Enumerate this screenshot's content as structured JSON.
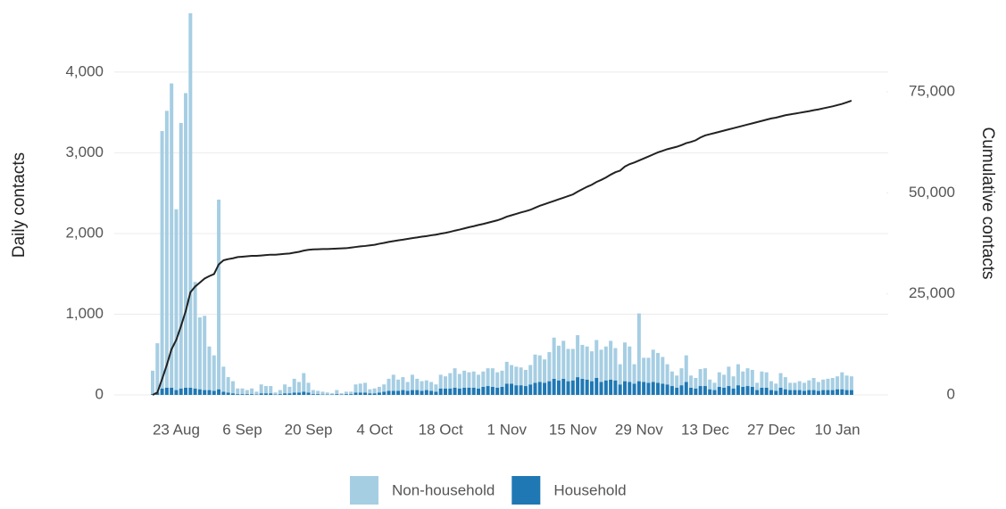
{
  "chart_data": {
    "type": "bar",
    "stacked": true,
    "y_label": "Daily contacts",
    "y2_label": "Cumulative contacts",
    "categories": [
      null,
      null,
      null,
      null,
      null,
      "23 Aug",
      null,
      null,
      null,
      null,
      null,
      null,
      null,
      null,
      null,
      null,
      null,
      null,
      null,
      "6 Sep",
      null,
      null,
      null,
      null,
      null,
      null,
      null,
      null,
      null,
      null,
      null,
      null,
      null,
      "20 Sep",
      null,
      null,
      null,
      null,
      null,
      null,
      null,
      null,
      null,
      null,
      null,
      null,
      null,
      "4 Oct",
      null,
      null,
      null,
      null,
      null,
      null,
      null,
      null,
      null,
      null,
      null,
      null,
      null,
      "18 Oct",
      null,
      null,
      null,
      null,
      null,
      null,
      null,
      null,
      null,
      null,
      null,
      null,
      null,
      "1 Nov",
      null,
      null,
      null,
      null,
      null,
      null,
      null,
      null,
      null,
      null,
      null,
      null,
      null,
      "15 Nov",
      null,
      null,
      null,
      null,
      null,
      null,
      null,
      null,
      null,
      null,
      null,
      null,
      null,
      "29 Nov",
      null,
      null,
      null,
      null,
      null,
      null,
      null,
      null,
      null,
      null,
      null,
      null,
      null,
      "13 Dec",
      null,
      null,
      null,
      null,
      null,
      null,
      null,
      null,
      null,
      null,
      null,
      null,
      null,
      "27 Dec",
      null,
      null,
      null,
      null,
      null,
      null,
      null,
      null,
      null,
      null,
      null,
      null,
      null,
      "10 Jan",
      null,
      null,
      null
    ],
    "series": [
      {
        "name": "Household",
        "color": "#1f78b4",
        "values": [
          10,
          30,
          80,
          90,
          90,
          60,
          80,
          90,
          90,
          80,
          70,
          60,
          60,
          50,
          70,
          40,
          30,
          20,
          10,
          10,
          10,
          10,
          5,
          20,
          20,
          20,
          5,
          10,
          20,
          20,
          30,
          30,
          40,
          30,
          10,
          10,
          5,
          5,
          5,
          10,
          5,
          10,
          10,
          30,
          30,
          30,
          20,
          20,
          30,
          40,
          50,
          50,
          50,
          60,
          50,
          60,
          60,
          50,
          60,
          50,
          40,
          80,
          80,
          80,
          90,
          80,
          90,
          90,
          90,
          80,
          100,
          110,
          100,
          90,
          100,
          140,
          140,
          120,
          120,
          110,
          130,
          150,
          160,
          150,
          170,
          200,
          180,
          200,
          170,
          180,
          220,
          200,
          190,
          170,
          210,
          160,
          180,
          190,
          180,
          130,
          170,
          160,
          140,
          170,
          160,
          150,
          160,
          150,
          140,
          130,
          110,
          90,
          120,
          160,
          90,
          80,
          110,
          110,
          70,
          60,
          100,
          90,
          110,
          80,
          120,
          100,
          110,
          100,
          60,
          90,
          90,
          60,
          50,
          90,
          70,
          60,
          60,
          60,
          50,
          60,
          60,
          50,
          60,
          60,
          60,
          70,
          70,
          60,
          60
        ]
      },
      {
        "name": "Non-household",
        "color": "#a6cee3",
        "values": [
          290,
          610,
          3190,
          3430,
          3770,
          2240,
          3290,
          3650,
          4640,
          1320,
          890,
          920,
          540,
          440,
          2350,
          310,
          190,
          150,
          70,
          70,
          50,
          70,
          35,
          110,
          90,
          90,
          25,
          50,
          110,
          80,
          170,
          130,
          230,
          120,
          50,
          40,
          35,
          25,
          15,
          50,
          15,
          30,
          30,
          100,
          110,
          120,
          50,
          60,
          70,
          90,
          150,
          200,
          140,
          160,
          110,
          190,
          140,
          120,
          120,
          110,
          90,
          170,
          150,
          190,
          240,
          180,
          210,
          190,
          200,
          170,
          190,
          220,
          230,
          190,
          200,
          270,
          230,
          230,
          220,
          200,
          240,
          350,
          330,
          290,
          360,
          510,
          430,
          470,
          400,
          390,
          520,
          420,
          410,
          370,
          470,
          400,
          420,
          480,
          400,
          250,
          480,
          440,
          240,
          840,
          300,
          310,
          400,
          370,
          330,
          250,
          180,
          150,
          210,
          330,
          150,
          130,
          210,
          220,
          120,
          90,
          180,
          160,
          240,
          150,
          260,
          190,
          220,
          210,
          90,
          200,
          190,
          110,
          90,
          180,
          150,
          90,
          90,
          110,
          100,
          120,
          150,
          110,
          130,
          140,
          150,
          160,
          210,
          180,
          170
        ]
      },
      {
        "name": "Cumulative",
        "type": "line",
        "axis": "y2",
        "color": "#222222",
        "values": [
          0,
          600,
          3900,
          7400,
          11300,
          13600,
          17000,
          20700,
          25400,
          26800,
          27800,
          28800,
          29400,
          29900,
          32300,
          33300,
          33600,
          33800,
          34100,
          34200,
          34300,
          34400,
          34400,
          34500,
          34600,
          34700,
          34700,
          34800,
          34900,
          35000,
          35200,
          35400,
          35700,
          35900,
          36000,
          36050,
          36100,
          36100,
          36150,
          36200,
          36250,
          36300,
          36450,
          36600,
          36750,
          36850,
          37000,
          37150,
          37400,
          37600,
          37850,
          38050,
          38250,
          38400,
          38600,
          38800,
          38950,
          39150,
          39300,
          39500,
          39650,
          39900,
          40100,
          40350,
          40650,
          40900,
          41200,
          41500,
          41750,
          42050,
          42300,
          42600,
          42900,
          43200,
          43600,
          44100,
          44450,
          44800,
          45150,
          45450,
          45800,
          46300,
          46800,
          47200,
          47600,
          48000,
          48400,
          48800,
          49200,
          49600,
          50300,
          50900,
          51500,
          52000,
          52700,
          53200,
          53800,
          54500,
          55100,
          55500,
          56500,
          57100,
          57500,
          58000,
          58500,
          59000,
          59500,
          60000,
          60400,
          60800,
          61100,
          61400,
          61800,
          62300,
          62600,
          63000,
          63700,
          64200,
          64500,
          64800,
          65100,
          65400,
          65700,
          66000,
          66300,
          66600,
          66900,
          67200,
          67500,
          67800,
          68100,
          68400,
          68600,
          68900,
          69200,
          69400,
          69600,
          69800,
          70000,
          70200,
          70450,
          70650,
          70900,
          71150,
          71400,
          71700,
          72000,
          72400,
          72800
        ]
      }
    ],
    "legend_order": [
      1,
      0
    ],
    "legend": "bottom",
    "ylim": [
      0,
      4750
    ],
    "yticks": [
      0,
      {
        "value": 1000,
        "label": "1,000"
      },
      {
        "value": 2000,
        "label": "2,000"
      },
      {
        "value": 3000,
        "label": "3,000"
      },
      {
        "value": 4000,
        "label": "4,000"
      }
    ],
    "y2lim": [
      0,
      94850
    ],
    "y2ticks": [
      0,
      {
        "value": 25000,
        "label": "25,000"
      },
      {
        "value": 50000,
        "label": "50,000"
      },
      {
        "value": 75000,
        "label": "75,000"
      }
    ],
    "grid": true
  }
}
